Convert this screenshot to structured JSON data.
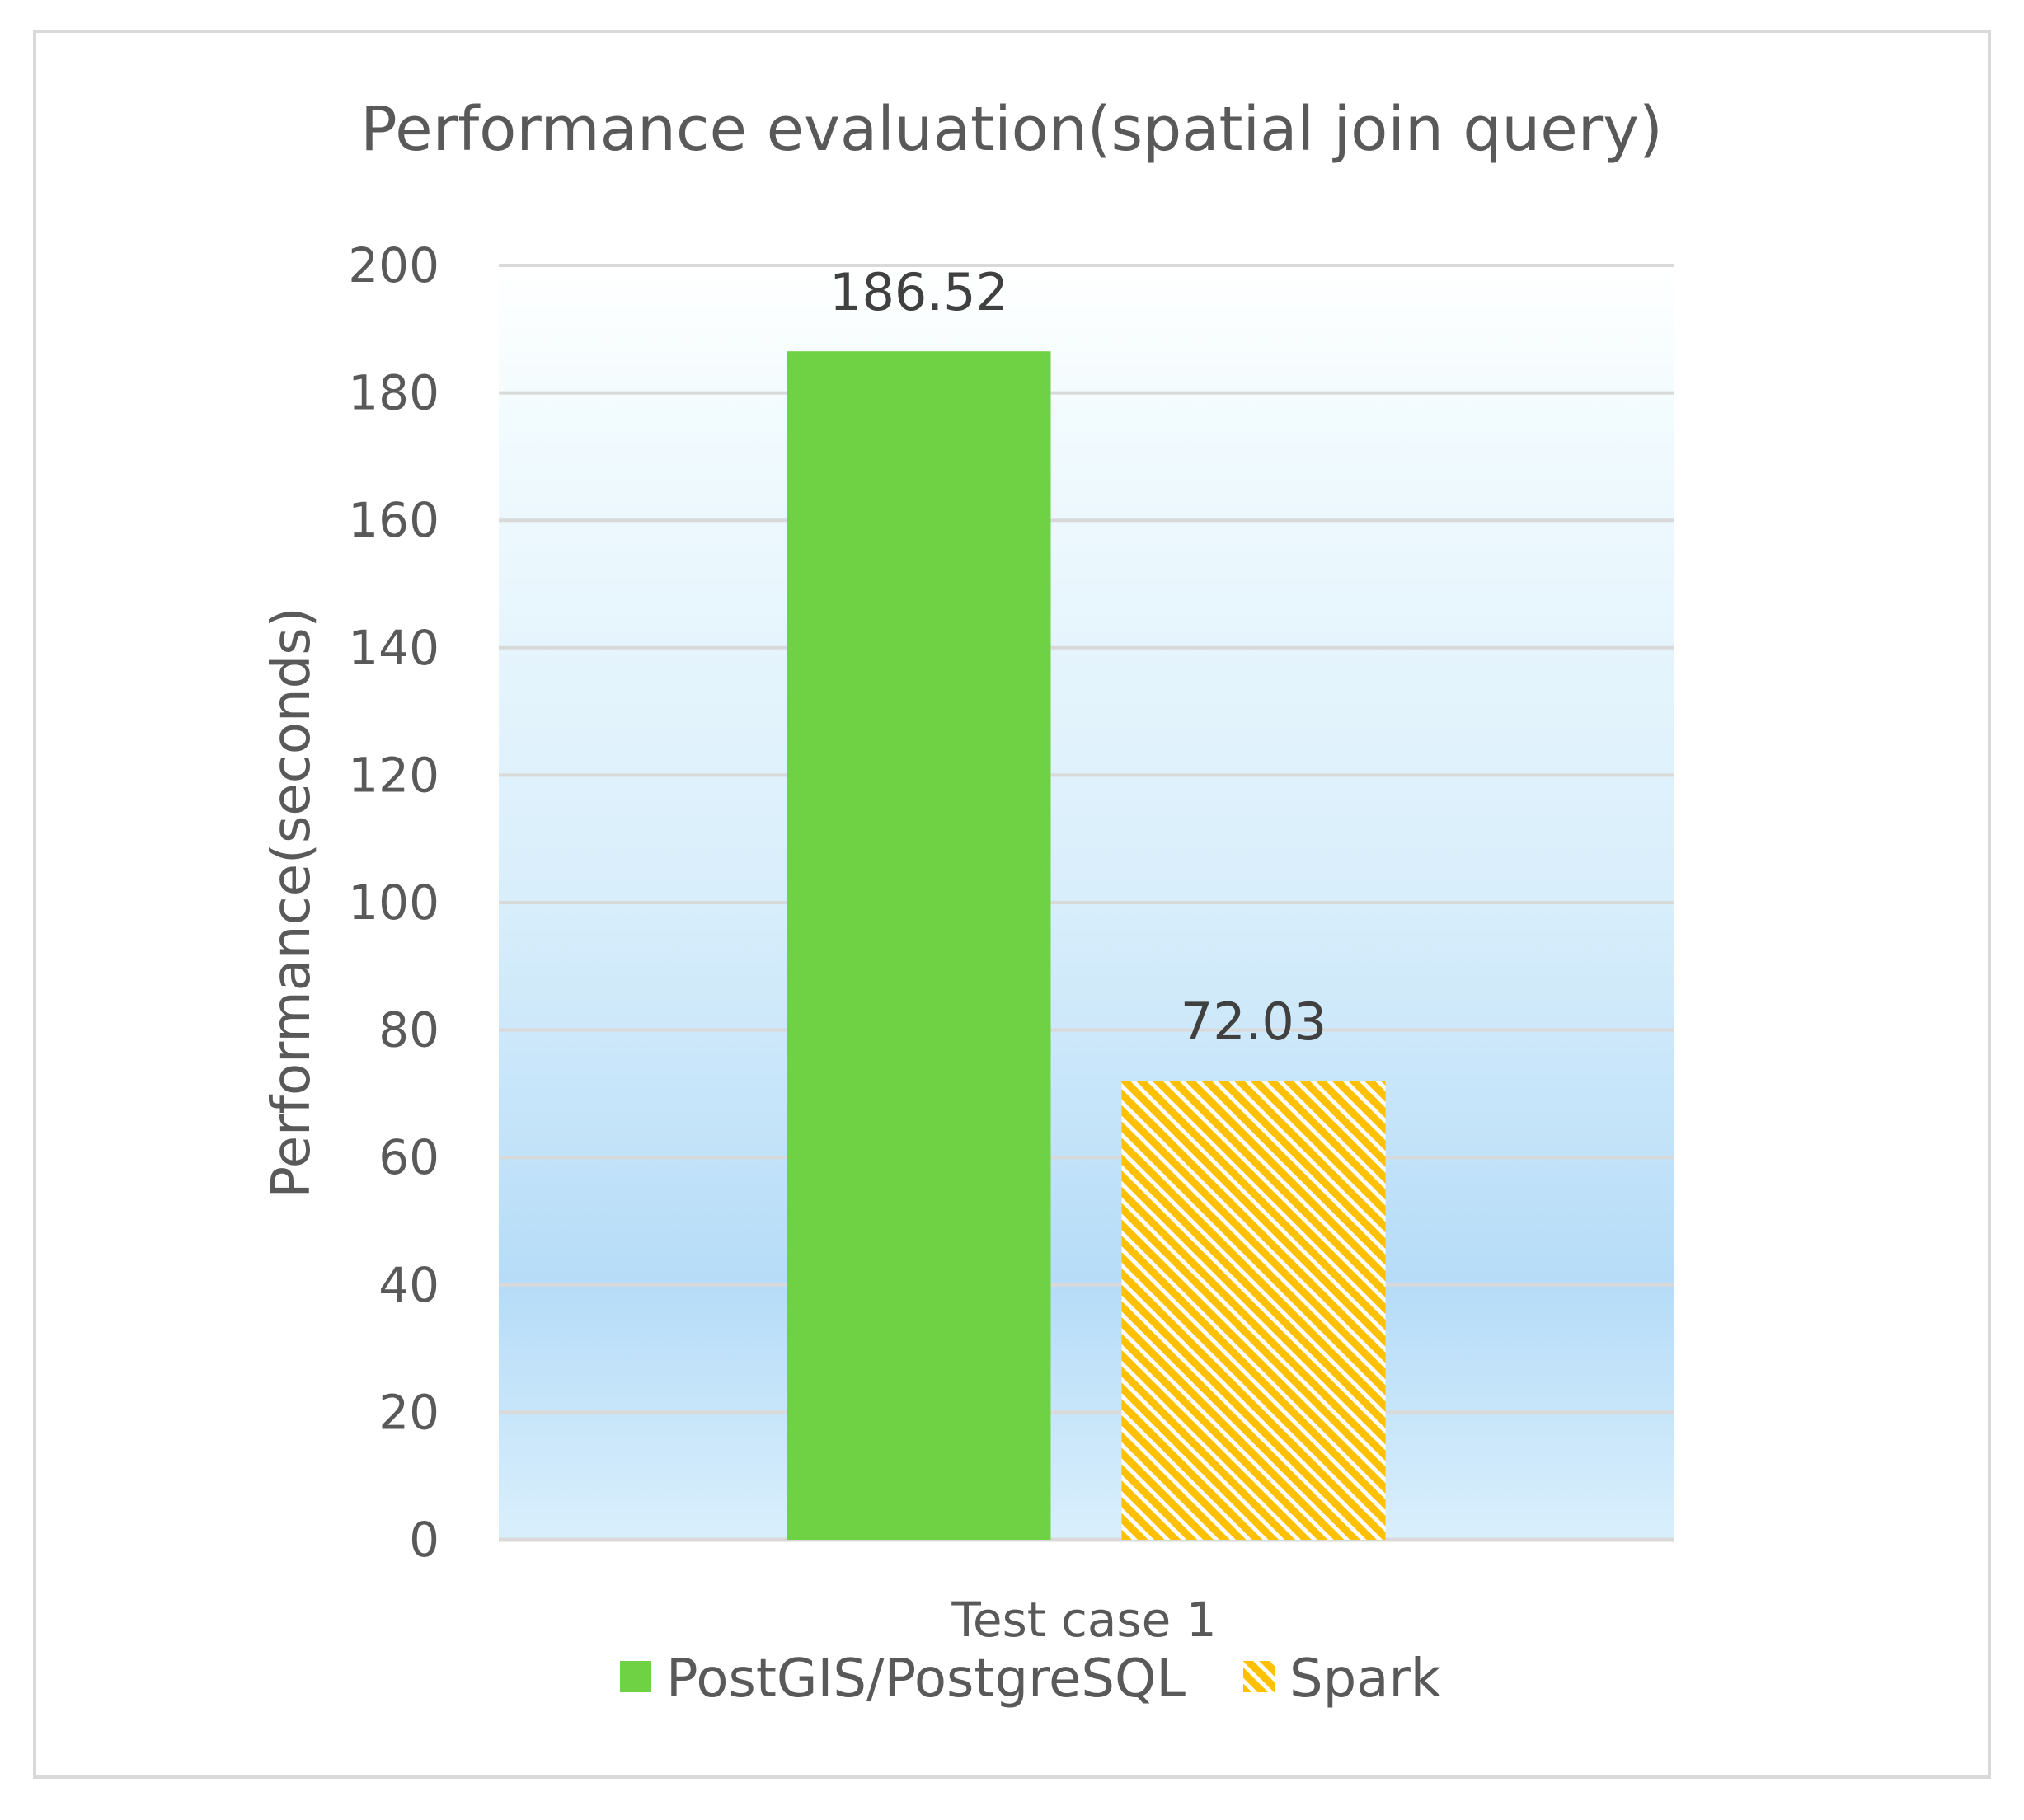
{
  "chart_data": {
    "type": "bar",
    "title": "Performance evaluation(spatial join query)",
    "ylabel": "Performance(seconds)",
    "xlabel": "",
    "categories": [
      "Test case 1"
    ],
    "series": [
      {
        "name": "PostGIS/PostgreSQL",
        "values": [
          186.52
        ],
        "data_labels": [
          "186.52"
        ],
        "color": "#6fd144",
        "pattern": "solid"
      },
      {
        "name": "Spark",
        "values": [
          72.03
        ],
        "data_labels": [
          "72.03"
        ],
        "color": "#ffc000",
        "pattern": "diagonal-hatch"
      }
    ],
    "ylim": [
      0,
      200
    ],
    "yticks": [
      0,
      20,
      40,
      60,
      80,
      100,
      120,
      140,
      160,
      180,
      200
    ],
    "ytick_labels": [
      "0",
      "20",
      "40",
      "60",
      "80",
      "100",
      "120",
      "140",
      "160",
      "180",
      "200"
    ],
    "grid": true,
    "legend_position": "bottom",
    "plot_background": "gradient light blue"
  }
}
